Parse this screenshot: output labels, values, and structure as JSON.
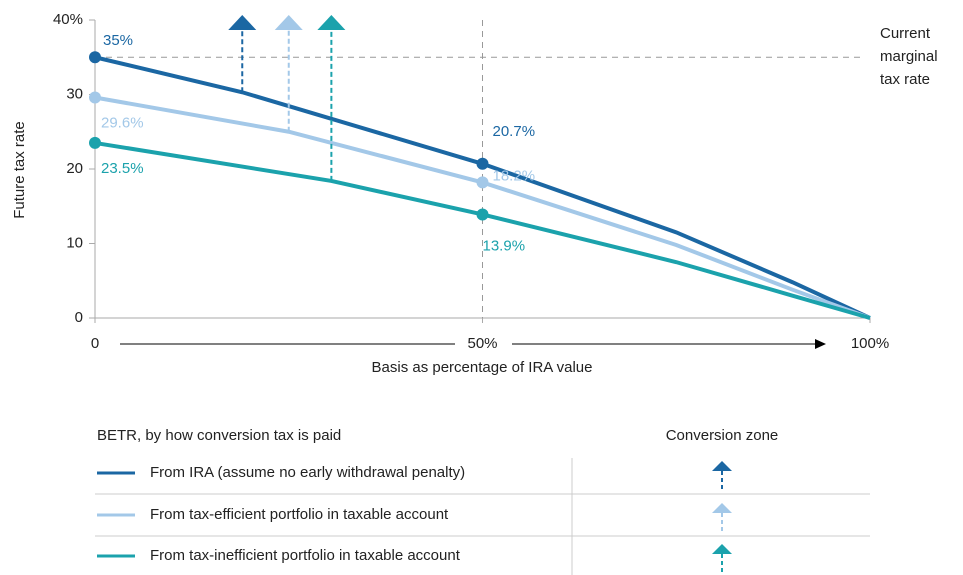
{
  "chart_data": {
    "type": "line",
    "y_label": "Future tax rate",
    "x_label": "Basis as percentage of IRA value",
    "xlim": [
      0,
      100
    ],
    "ylim": [
      0,
      40
    ],
    "xticks": [
      0,
      {
        "value": 50,
        "label": "50%"
      },
      {
        "value": 100,
        "label": "100%"
      }
    ],
    "yticks": [
      0,
      10,
      20,
      30,
      {
        "value": 40,
        "label": "40%"
      }
    ],
    "reference_line": {
      "value": 35,
      "label": [
        "Current",
        "marginal",
        "tax rate"
      ]
    },
    "x_reference": 50,
    "legend_title": "BETR, by how conversion tax is paid",
    "zone_title": "Conversion zone",
    "series": [
      {
        "name": "From IRA (assume no early withdrawal penalty)",
        "color": "#1b67a3",
        "x": [
          0,
          19,
          50,
          75,
          90,
          100
        ],
        "values": [
          35,
          30.3,
          20.7,
          11.5,
          4.8,
          0
        ],
        "value_labels": [
          "35%",
          null,
          "20.7%",
          null,
          null,
          null
        ],
        "conversion_x": 19
      },
      {
        "name": "From tax-efficient portfolio in taxable account",
        "color": "#a3c8e8",
        "x": [
          0,
          25,
          50,
          75,
          90,
          100
        ],
        "values": [
          29.6,
          25,
          18.2,
          9.8,
          3.8,
          0
        ],
        "value_labels": [
          "29.6%",
          null,
          "18.2%",
          null,
          null,
          null
        ],
        "conversion_x": 25
      },
      {
        "name": "From tax-inefficient portfolio in taxable account",
        "color": "#1ba2ac",
        "x": [
          0,
          30.5,
          50,
          75,
          90,
          100
        ],
        "values": [
          23.5,
          18.4,
          13.9,
          7.5,
          3,
          0
        ],
        "value_labels": [
          "23.5%",
          null,
          "13.9%",
          null,
          null,
          null
        ],
        "conversion_x": 30.5
      }
    ]
  }
}
